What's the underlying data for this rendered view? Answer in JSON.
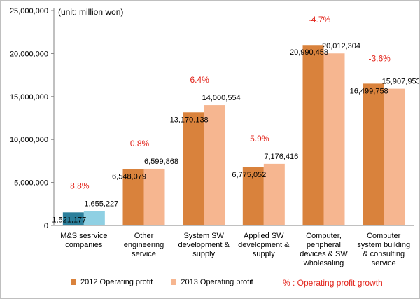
{
  "chart_data": {
    "type": "bar",
    "unit_label": "(unit: million won)",
    "categories": [
      [
        "M&S sesrvice",
        "companies"
      ],
      [
        "Other",
        "engineering",
        "service"
      ],
      [
        "System SW",
        "development &",
        "supply"
      ],
      [
        "Applied SW",
        "development &",
        "supply"
      ],
      [
        "Computer,",
        "peripheral",
        "devices & SW",
        "wholesaling"
      ],
      [
        "Computer",
        "system building",
        "& consulting",
        "service"
      ]
    ],
    "series": [
      {
        "name": "2012 Operating profit",
        "values": [
          1521177,
          6548079,
          13170138,
          6775052,
          20990458,
          16499758
        ]
      },
      {
        "name": "2013 Operating profit",
        "values": [
          1655227,
          6599868,
          14000554,
          7176416,
          20012304,
          15907953
        ]
      }
    ],
    "value_labels": [
      [
        "1,521,177",
        "6,548,079",
        "13,170,138",
        "6,775,052",
        "20,990,458",
        "16,499,758"
      ],
      [
        "1,655,227",
        "6,599,868",
        "14,000,554",
        "7,176,416",
        "20,012,304",
        "15,907,953"
      ]
    ],
    "growth_labels": [
      "8.8%",
      "0.8%",
      "6.4%",
      "5.9%",
      "-4.7%",
      "-3.6%"
    ],
    "ylim": [
      0,
      25000000
    ],
    "yticks": [
      0,
      5000000,
      10000000,
      15000000,
      20000000,
      25000000
    ],
    "ytick_labels": [
      "0",
      "5,000,000",
      "10,000,000",
      "15,000,000",
      "20,000,000",
      "25,000,000"
    ],
    "grid": false,
    "legend_position": "bottom",
    "growth_note": "% : Operating profit growth",
    "colors": {
      "series_2012": "#d9823c",
      "series_2013": "#f6b690",
      "first_2012": "#2b7f9b",
      "first_2013": "#8fd0e3",
      "growth_text": "#e2231a",
      "axis": "#808080"
    }
  }
}
